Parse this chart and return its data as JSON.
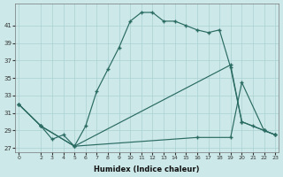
{
  "xlabel": "Humidex (Indice chaleur)",
  "bg_color": "#cce8e8",
  "line_color": "#2a6b62",
  "grid_color": "#aad0d0",
  "xlim": [
    -0.3,
    23.3
  ],
  "ylim": [
    26.5,
    43.5
  ],
  "xticks": [
    0,
    2,
    3,
    4,
    5,
    6,
    7,
    8,
    9,
    10,
    11,
    12,
    13,
    14,
    15,
    16,
    17,
    18,
    19,
    20,
    21,
    22,
    23
  ],
  "yticks": [
    27,
    29,
    31,
    33,
    35,
    37,
    39,
    41
  ],
  "line1_x": [
    0,
    2,
    3,
    4,
    5,
    6,
    7,
    8,
    9,
    10,
    11,
    12,
    13,
    14,
    15,
    16,
    17,
    18,
    19,
    20,
    21,
    22,
    23
  ],
  "line1_y": [
    32,
    29.5,
    28,
    28.5,
    27.2,
    29.5,
    33.5,
    36,
    38.5,
    41.5,
    42.5,
    42.5,
    41.5,
    41.5,
    41,
    40.5,
    40.2,
    40.5,
    36.2,
    30,
    29.5,
    29,
    28.5
  ],
  "line2_x": [
    0,
    2,
    5,
    16,
    19,
    20,
    22,
    23
  ],
  "line2_y": [
    32,
    29.5,
    27.2,
    28.2,
    28.2,
    34.5,
    29,
    28.5
  ],
  "line3_x": [
    0,
    2,
    5,
    19,
    20,
    22,
    23
  ],
  "line3_y": [
    32,
    29.5,
    27.2,
    36.5,
    30,
    29,
    28.5
  ]
}
